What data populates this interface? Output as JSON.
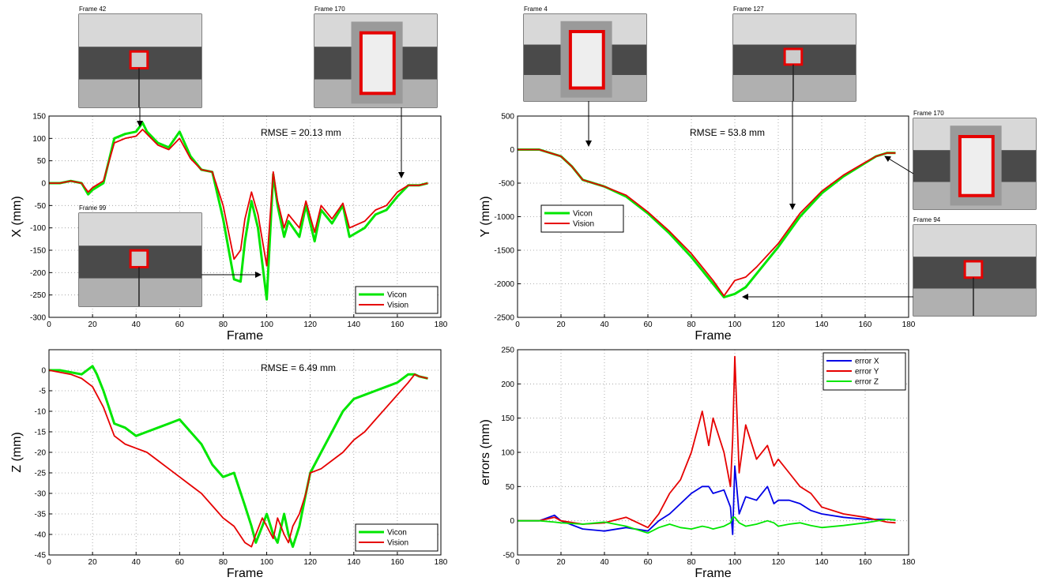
{
  "chart_data": [
    {
      "type": "line",
      "x_label": "Frame",
      "y_label": "X (mm)",
      "annotations": [
        "RMSE = 20.13 mm"
      ],
      "inset_labels": [
        "Frame 42",
        "Frame 170",
        "Frame 99"
      ],
      "xlim": [
        0,
        180
      ],
      "xticks": [
        0,
        20,
        40,
        60,
        80,
        100,
        120,
        140,
        160,
        180
      ],
      "ylim": [
        -300,
        150
      ],
      "yticks": [
        150,
        100,
        50,
        0,
        -50,
        -100,
        -150,
        -200,
        -250,
        -300
      ],
      "grid": true,
      "legend": "lower right",
      "x": [
        0,
        5,
        10,
        15,
        18,
        20,
        25,
        30,
        35,
        40,
        43,
        45,
        50,
        55,
        60,
        65,
        70,
        75,
        80,
        85,
        88,
        90,
        93,
        96,
        100,
        103,
        105,
        108,
        110,
        115,
        118,
        122,
        125,
        130,
        135,
        138,
        145,
        150,
        155,
        160,
        165,
        170,
        174
      ],
      "series": [
        {
          "name": "Vicon",
          "color": "#00e600",
          "values": [
            0,
            0,
            5,
            0,
            -25,
            -15,
            0,
            100,
            110,
            115,
            135,
            115,
            90,
            80,
            115,
            60,
            30,
            25,
            -80,
            -215,
            -220,
            -130,
            -40,
            -100,
            -260,
            20,
            -50,
            -120,
            -85,
            -120,
            -50,
            -130,
            -60,
            -90,
            -50,
            -120,
            -100,
            -70,
            -60,
            -30,
            -5,
            -5,
            0
          ]
        },
        {
          "name": "Vision",
          "color": "#e60000",
          "values": [
            0,
            0,
            5,
            0,
            -20,
            -10,
            5,
            90,
            100,
            105,
            120,
            110,
            85,
            75,
            100,
            55,
            30,
            25,
            -50,
            -170,
            -150,
            -80,
            -20,
            -70,
            -185,
            25,
            -40,
            -100,
            -70,
            -100,
            -40,
            -110,
            -50,
            -80,
            -45,
            -100,
            -85,
            -60,
            -50,
            -20,
            -5,
            -5,
            0
          ]
        }
      ]
    },
    {
      "type": "line",
      "x_label": "Frame",
      "y_label": "Y (mm)",
      "annotations": [
        "RMSE = 53.8 mm"
      ],
      "inset_labels": [
        "Frame 4",
        "Frame 127",
        "Frame 170",
        "Frame 94"
      ],
      "xlim": [
        0,
        180
      ],
      "xticks": [
        0,
        20,
        40,
        60,
        80,
        100,
        120,
        140,
        160,
        180
      ],
      "ylim": [
        -2500,
        500
      ],
      "yticks": [
        500,
        0,
        -500,
        -1000,
        -1500,
        -2000,
        -2500
      ],
      "grid": true,
      "legend": "lower left",
      "x": [
        0,
        10,
        20,
        25,
        30,
        40,
        50,
        60,
        70,
        80,
        90,
        95,
        100,
        105,
        110,
        120,
        130,
        140,
        150,
        160,
        165,
        170,
        174
      ],
      "series": [
        {
          "name": "Vicon",
          "color": "#00e600",
          "values": [
            0,
            0,
            -100,
            -250,
            -450,
            -550,
            -700,
            -950,
            -1250,
            -1600,
            -2000,
            -2200,
            -2150,
            -2050,
            -1850,
            -1450,
            -1000,
            -650,
            -400,
            -200,
            -100,
            -50,
            -50
          ]
        },
        {
          "name": "Vision",
          "color": "#e60000",
          "values": [
            0,
            0,
            -100,
            -250,
            -450,
            -550,
            -680,
            -930,
            -1220,
            -1550,
            -1950,
            -2180,
            -1950,
            -1900,
            -1750,
            -1400,
            -950,
            -620,
            -380,
            -190,
            -100,
            -50,
            -50
          ]
        }
      ]
    },
    {
      "type": "line",
      "x_label": "Frame",
      "y_label": "Z (mm)",
      "annotations": [
        "RMSE = 6.49 mm"
      ],
      "inset_labels": [],
      "xlim": [
        0,
        180
      ],
      "xticks": [
        0,
        20,
        40,
        60,
        80,
        100,
        120,
        140,
        160,
        180
      ],
      "ylim": [
        -45,
        5
      ],
      "yticks": [
        0,
        -5,
        -10,
        -15,
        -20,
        -25,
        -30,
        -35,
        -40,
        -45
      ],
      "grid": true,
      "legend": "lower right",
      "x": [
        0,
        5,
        10,
        15,
        20,
        22,
        25,
        30,
        35,
        40,
        45,
        50,
        55,
        60,
        65,
        70,
        75,
        80,
        85,
        90,
        93,
        95,
        98,
        100,
        103,
        105,
        108,
        110,
        112,
        115,
        118,
        120,
        125,
        130,
        135,
        140,
        145,
        150,
        155,
        160,
        165,
        168,
        170,
        174
      ],
      "series": [
        {
          "name": "Vicon",
          "color": "#00e600",
          "values": [
            0,
            0,
            -0.5,
            -1,
            1,
            -1,
            -5,
            -13,
            -14,
            -16,
            -15,
            -14,
            -13,
            -12,
            -15,
            -18,
            -23,
            -26,
            -25,
            -33,
            -38,
            -42,
            -38,
            -35,
            -40,
            -42,
            -35,
            -40,
            -43,
            -38,
            -30,
            -25,
            -20,
            -15,
            -10,
            -7,
            -6,
            -5,
            -4,
            -3,
            -1,
            -1,
            -1.5,
            -2
          ]
        },
        {
          "name": "Vision",
          "color": "#e60000",
          "values": [
            0,
            -0.5,
            -1,
            -2,
            -4,
            -6,
            -9,
            -16,
            -18,
            -19,
            -20,
            -22,
            -24,
            -26,
            -28,
            -30,
            -33,
            -36,
            -38,
            -42,
            -43,
            -40,
            -36,
            -38,
            -41,
            -36,
            -40,
            -42,
            -38,
            -35,
            -30,
            -25,
            -24,
            -22,
            -20,
            -17,
            -15,
            -12,
            -9,
            -6,
            -3,
            -1,
            -1.5,
            -2
          ]
        }
      ]
    },
    {
      "type": "line",
      "x_label": "Frame",
      "y_label": "errors (mm)",
      "annotations": [],
      "inset_labels": [],
      "xlim": [
        0,
        180
      ],
      "xticks": [
        0,
        20,
        40,
        60,
        80,
        100,
        120,
        140,
        160,
        180
      ],
      "ylim": [
        -50,
        250
      ],
      "yticks": [
        250,
        200,
        150,
        100,
        50,
        0,
        -50
      ],
      "grid": true,
      "legend": "upper right",
      "x": [
        0,
        10,
        17,
        20,
        30,
        40,
        50,
        60,
        65,
        70,
        75,
        80,
        85,
        88,
        90,
        95,
        98,
        99,
        100,
        102,
        105,
        110,
        115,
        118,
        120,
        125,
        130,
        135,
        140,
        150,
        160,
        170,
        174
      ],
      "series": [
        {
          "name": "error X",
          "color": "#0000e6",
          "values": [
            0,
            0,
            8,
            0,
            -12,
            -15,
            -10,
            -15,
            0,
            10,
            25,
            40,
            50,
            50,
            40,
            45,
            20,
            -20,
            80,
            10,
            35,
            30,
            50,
            25,
            30,
            30,
            25,
            15,
            10,
            5,
            2,
            2,
            1
          ]
        },
        {
          "name": "error Y",
          "color": "#e60000",
          "values": [
            0,
            0,
            5,
            0,
            -5,
            -3,
            5,
            -10,
            10,
            40,
            60,
            100,
            160,
            110,
            150,
            100,
            50,
            120,
            240,
            70,
            140,
            90,
            110,
            80,
            90,
            70,
            50,
            40,
            20,
            10,
            5,
            -2,
            -3
          ]
        },
        {
          "name": "error Z",
          "color": "#00e600",
          "values": [
            0,
            0,
            -2,
            -3,
            -5,
            -2,
            -8,
            -18,
            -10,
            -5,
            -10,
            -12,
            -8,
            -10,
            -12,
            -8,
            -3,
            5,
            5,
            -3,
            -8,
            -5,
            0,
            -3,
            -8,
            -5,
            -3,
            -7,
            -10,
            -7,
            -3,
            2,
            1
          ]
        }
      ]
    }
  ]
}
